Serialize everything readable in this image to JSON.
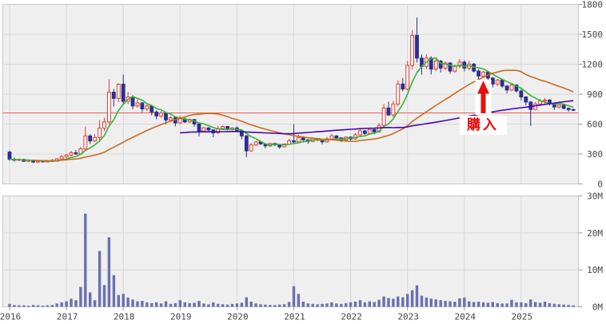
{
  "figure": {
    "background": "#ffffff",
    "panel_bg": "#efefef",
    "grid_color": "#d8d8d8",
    "border_color": "#c8c8c8",
    "axis_text_color": "#444444",
    "tick_color": "#999999"
  },
  "price_axis": {
    "ticks": [
      "0",
      "300",
      "600",
      "900",
      "1200",
      "1500",
      "1800"
    ],
    "min": 0,
    "max": 1800
  },
  "volume_axis": {
    "ticks": [
      "0M",
      "10M",
      "20M",
      "30M"
    ],
    "max_millions": 30
  },
  "time_axis": {
    "years": [
      "2016",
      "2017",
      "2018",
      "2019",
      "2020",
      "2021",
      "2022",
      "2023",
      "2024",
      "2025"
    ]
  },
  "reference_line": {
    "value": 712,
    "color": "#f0594e"
  },
  "annotation": {
    "label": "購入",
    "color": "#e30b0b",
    "arrow_color": "#e8100c",
    "month": "2024-05"
  },
  "chart_data": {
    "type": "candlestick",
    "interval": "monthly",
    "start": "2016-01",
    "title": "",
    "columns": [
      "open",
      "high",
      "low",
      "close",
      "volume_millions"
    ],
    "candle_up_color": "#e23b32",
    "candle_down_color": "#2c2f8e",
    "volume_color": "#6a70b0",
    "moving_averages": [
      {
        "name": "short",
        "window_months": 6,
        "color": "#38b438"
      },
      {
        "name": "medium",
        "window_months": 24,
        "color": "#cc6b1f"
      },
      {
        "name": "long",
        "window_months": 60,
        "color": "#4708ad"
      }
    ],
    "months": [
      [
        320,
        335,
        232,
        248,
        0.8
      ],
      [
        248,
        262,
        224,
        238,
        0.5
      ],
      [
        238,
        256,
        228,
        246,
        0.4
      ],
      [
        246,
        252,
        220,
        228,
        0.4
      ],
      [
        228,
        246,
        218,
        238,
        0.3
      ],
      [
        238,
        244,
        210,
        220,
        0.5
      ],
      [
        220,
        238,
        214,
        230,
        0.4
      ],
      [
        230,
        236,
        214,
        222,
        0.3
      ],
      [
        222,
        240,
        216,
        234,
        0.4
      ],
      [
        234,
        250,
        224,
        228,
        0.5
      ],
      [
        228,
        258,
        226,
        252,
        0.9
      ],
      [
        252,
        288,
        246,
        274,
        1.2
      ],
      [
        274,
        300,
        258,
        290,
        1.5
      ],
      [
        290,
        332,
        276,
        312,
        2.2
      ],
      [
        312,
        340,
        292,
        302,
        1.8
      ],
      [
        302,
        372,
        296,
        352,
        5.4
      ],
      [
        352,
        576,
        338,
        482,
        25.2
      ],
      [
        482,
        500,
        400,
        432,
        3.9
      ],
      [
        432,
        502,
        420,
        466,
        1.8
      ],
      [
        466,
        640,
        430,
        560,
        15.1
      ],
      [
        560,
        662,
        530,
        622,
        5.9
      ],
      [
        622,
        1050,
        598,
        920,
        18.8
      ],
      [
        920,
        952,
        778,
        858,
        8.6
      ],
      [
        858,
        1008,
        820,
        1000,
        3.2
      ],
      [
        1000,
        1096,
        798,
        828,
        3.5
      ],
      [
        828,
        922,
        800,
        872,
        2.5
      ],
      [
        872,
        890,
        748,
        782,
        2.0
      ],
      [
        782,
        852,
        764,
        812,
        1.5
      ],
      [
        812,
        820,
        718,
        752,
        1.6
      ],
      [
        752,
        802,
        730,
        782,
        1.2
      ],
      [
        782,
        790,
        688,
        722,
        1.0
      ],
      [
        722,
        736,
        648,
        682,
        1.2
      ],
      [
        682,
        732,
        664,
        712,
        0.9
      ],
      [
        712,
        722,
        598,
        642,
        1.5
      ],
      [
        642,
        678,
        622,
        664,
        0.8
      ],
      [
        664,
        672,
        578,
        612,
        1.0
      ],
      [
        612,
        682,
        600,
        652,
        1.8
      ],
      [
        652,
        668,
        610,
        622,
        1.2
      ],
      [
        622,
        656,
        608,
        646,
        1.0
      ],
      [
        646,
        652,
        574,
        602,
        1.1
      ],
      [
        602,
        612,
        478,
        532,
        1.6
      ],
      [
        532,
        572,
        516,
        562,
        0.9
      ],
      [
        562,
        570,
        528,
        542,
        0.7
      ],
      [
        542,
        548,
        468,
        512,
        1.2
      ],
      [
        512,
        582,
        504,
        556,
        0.8
      ],
      [
        556,
        586,
        540,
        576,
        0.7
      ],
      [
        576,
        582,
        536,
        546,
        0.6
      ],
      [
        546,
        570,
        534,
        562,
        0.8
      ],
      [
        562,
        576,
        522,
        532,
        0.9
      ],
      [
        532,
        540,
        448,
        482,
        1.1
      ],
      [
        482,
        490,
        268,
        332,
        2.6
      ],
      [
        332,
        412,
        320,
        392,
        1.4
      ],
      [
        392,
        428,
        380,
        422,
        0.9
      ],
      [
        422,
        430,
        392,
        402,
        0.7
      ],
      [
        402,
        408,
        358,
        382,
        0.6
      ],
      [
        382,
        412,
        374,
        406,
        0.5
      ],
      [
        406,
        414,
        382,
        392,
        0.5
      ],
      [
        392,
        398,
        352,
        372,
        0.6
      ],
      [
        372,
        406,
        366,
        400,
        0.7
      ],
      [
        400,
        452,
        394,
        432,
        1.3
      ],
      [
        432,
        600,
        408,
        422,
        5.6
      ],
      [
        422,
        492,
        416,
        466,
        3.5
      ],
      [
        466,
        478,
        432,
        442,
        1.4
      ],
      [
        442,
        450,
        402,
        426,
        0.9
      ],
      [
        426,
        460,
        418,
        456,
        0.8
      ],
      [
        456,
        462,
        430,
        440,
        0.7
      ],
      [
        440,
        446,
        398,
        422,
        0.8
      ],
      [
        422,
        472,
        414,
        452,
        0.9
      ],
      [
        452,
        502,
        444,
        482,
        1.2
      ],
      [
        482,
        490,
        450,
        462,
        0.9
      ],
      [
        462,
        468,
        418,
        442,
        0.8
      ],
      [
        442,
        476,
        434,
        470,
        1.0
      ],
      [
        470,
        478,
        428,
        452,
        1.2
      ],
      [
        452,
        512,
        444,
        492,
        1.4
      ],
      [
        492,
        562,
        480,
        532,
        1.8
      ],
      [
        532,
        540,
        494,
        506,
        1.2
      ],
      [
        506,
        550,
        498,
        546,
        1.5
      ],
      [
        546,
        552,
        498,
        522,
        1.3
      ],
      [
        522,
        612,
        514,
        586,
        1.9
      ],
      [
        586,
        802,
        560,
        762,
        2.8
      ],
      [
        762,
        824,
        682,
        692,
        2.4
      ],
      [
        692,
        832,
        668,
        802,
        2.2
      ],
      [
        802,
        1042,
        778,
        1002,
        2.8
      ],
      [
        1002,
        1062,
        928,
        952,
        2.6
      ],
      [
        952,
        1232,
        938,
        1188,
        3.5
      ],
      [
        1188,
        1542,
        1150,
        1490,
        4.5
      ],
      [
        1490,
        1668,
        1218,
        1262,
        5.8
      ],
      [
        1262,
        1300,
        1096,
        1178,
        3.0
      ],
      [
        1178,
        1302,
        1150,
        1262,
        2.5
      ],
      [
        1262,
        1280,
        1098,
        1152,
        2.2
      ],
      [
        1152,
        1260,
        1128,
        1232,
        2.0
      ],
      [
        1232,
        1244,
        1118,
        1162,
        1.8
      ],
      [
        1162,
        1228,
        1140,
        1212,
        1.6
      ],
      [
        1212,
        1222,
        1106,
        1132,
        1.5
      ],
      [
        1132,
        1196,
        1112,
        1182,
        1.4
      ],
      [
        1182,
        1252,
        1160,
        1222,
        2.3
      ],
      [
        1222,
        1240,
        1128,
        1162,
        2.5
      ],
      [
        1162,
        1234,
        1140,
        1202,
        1.5
      ],
      [
        1202,
        1212,
        1118,
        1132,
        1.3
      ],
      [
        1132,
        1150,
        1048,
        1082,
        1.4
      ],
      [
        1082,
        1132,
        1060,
        1122,
        1.2
      ],
      [
        1122,
        1134,
        1044,
        1062,
        1.1
      ],
      [
        1062,
        1072,
        968,
        1002,
        1.3
      ],
      [
        1002,
        1052,
        980,
        1042,
        1.0
      ],
      [
        1042,
        1050,
        962,
        982,
        0.9
      ],
      [
        982,
        992,
        908,
        942,
        0.9
      ],
      [
        942,
        1012,
        930,
        992,
        1.9
      ],
      [
        992,
        1000,
        918,
        932,
        1.2
      ],
      [
        932,
        950,
        838,
        872,
        1.2
      ],
      [
        872,
        880,
        788,
        822,
        1.0
      ],
      [
        822,
        832,
        584,
        748,
        2.0
      ],
      [
        748,
        822,
        738,
        802,
        1.3
      ],
      [
        802,
        852,
        792,
        832,
        1.1
      ],
      [
        832,
        862,
        806,
        842,
        1.4
      ],
      [
        842,
        850,
        786,
        802,
        1.0
      ],
      [
        802,
        810,
        742,
        772,
        0.8
      ],
      [
        772,
        796,
        756,
        790,
        0.7
      ],
      [
        790,
        798,
        748,
        758,
        0.6
      ],
      [
        758,
        766,
        726,
        746,
        0.5
      ],
      [
        746,
        756,
        730,
        740,
        0.4
      ]
    ]
  }
}
